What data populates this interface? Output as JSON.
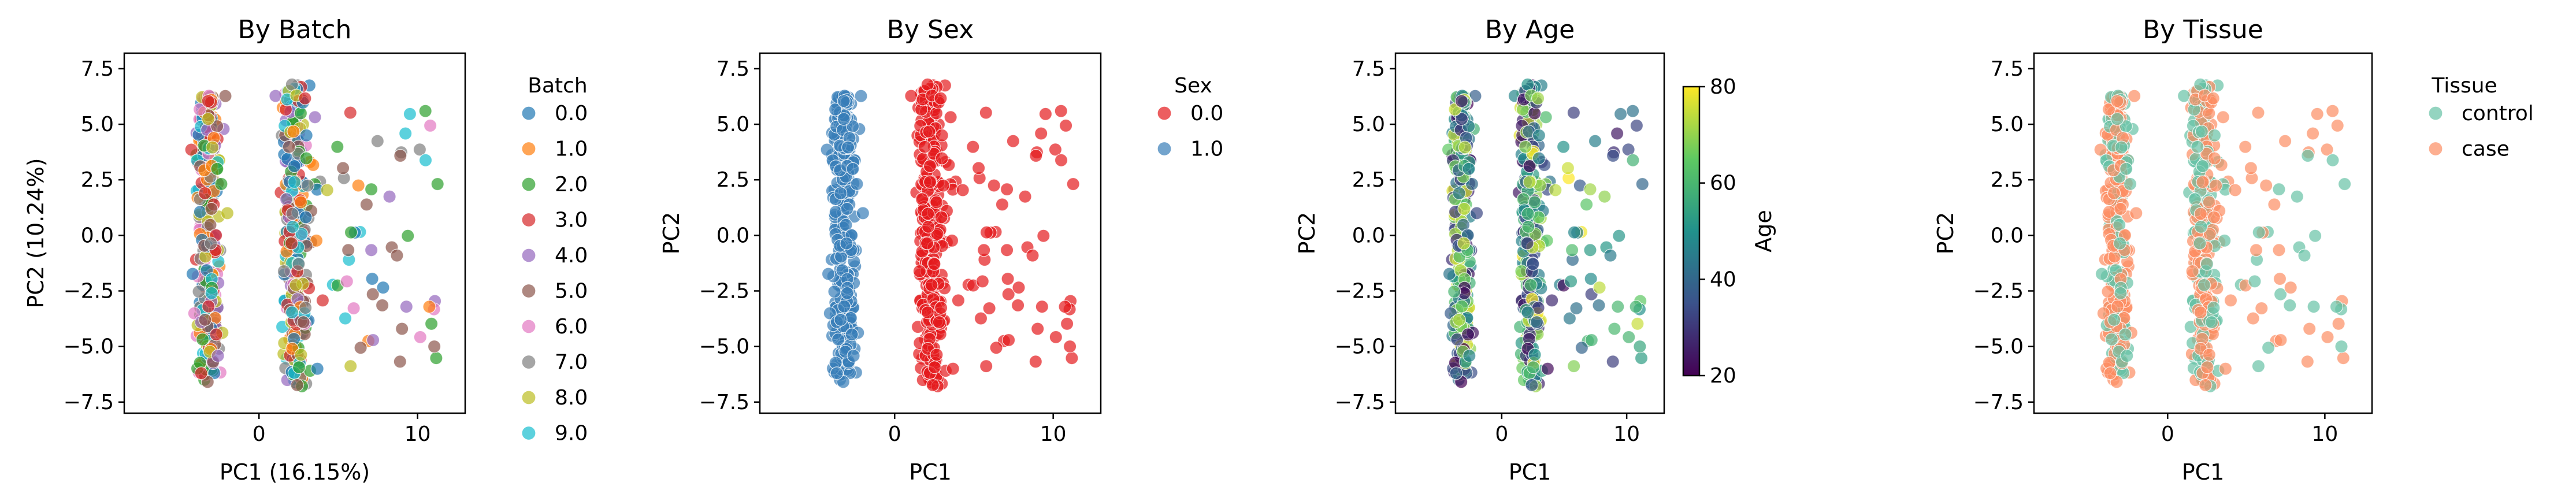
{
  "chart_data": [
    {
      "type": "scatter",
      "title": "By Batch",
      "xlabel": "PC1 (16.15%)",
      "ylabel": "PC2 (10.24%)",
      "xlim": [
        -8.5,
        13.0
      ],
      "ylim": [
        -8.0,
        8.2
      ],
      "xticks": [
        0,
        10
      ],
      "yticks": [
        -7.5,
        -5.0,
        -2.5,
        0.0,
        2.5,
        5.0,
        7.5
      ],
      "xtick_labels": [
        "0",
        "10"
      ],
      "ytick_labels": [
        "−7.5",
        "−5.0",
        "−2.5",
        "0.0",
        "2.5",
        "5.0",
        "7.5"
      ],
      "legend": {
        "title": "Batch",
        "placement": "outside-right",
        "entries": [
          "0.0",
          "1.0",
          "2.0",
          "3.0",
          "4.0",
          "5.0",
          "6.0",
          "7.0",
          "8.0",
          "9.0"
        ],
        "colors": [
          "#1f77b4",
          "#ff7f0e",
          "#2ca02c",
          "#d62728",
          "#9467bd",
          "#8c564b",
          "#e377c2",
          "#7f7f7f",
          "#bcbd22",
          "#17becf"
        ]
      },
      "grid": false,
      "marker_opacity": 0.7
    },
    {
      "type": "scatter",
      "title": "By Sex",
      "xlabel": "PC1",
      "ylabel": "PC2",
      "xlim": [
        -8.5,
        13.0
      ],
      "ylim": [
        -8.0,
        8.2
      ],
      "xticks": [
        0,
        10
      ],
      "yticks": [
        -7.5,
        -5.0,
        -2.5,
        0.0,
        2.5,
        5.0,
        7.5
      ],
      "xtick_labels": [
        "0",
        "10"
      ],
      "ytick_labels": [
        "−7.5",
        "−5.0",
        "−2.5",
        "0.0",
        "2.5",
        "5.0",
        "7.5"
      ],
      "legend": {
        "title": "Sex",
        "placement": "outside-right",
        "entries": [
          "0.0",
          "1.0"
        ],
        "colors": [
          "#e41a1c",
          "#377eb8"
        ]
      },
      "grid": false,
      "marker_opacity": 0.7
    },
    {
      "type": "scatter",
      "title": "By Age",
      "xlabel": "PC1",
      "ylabel": "PC2",
      "xlim": [
        -8.5,
        13.0
      ],
      "ylim": [
        -8.0,
        8.2
      ],
      "xticks": [
        0,
        10
      ],
      "yticks": [
        -7.5,
        -5.0,
        -2.5,
        0.0,
        2.5,
        5.0,
        7.5
      ],
      "xtick_labels": [
        "0",
        "10"
      ],
      "ytick_labels": [
        "−7.5",
        "−5.0",
        "−2.5",
        "0.0",
        "2.5",
        "5.0",
        "7.5"
      ],
      "colorbar": {
        "label": "Age",
        "range": [
          20,
          80
        ],
        "ticks": [
          20,
          40,
          60,
          80
        ],
        "tick_labels": [
          "20",
          "40",
          "60",
          "80"
        ],
        "colormap": [
          "#440154",
          "#3b528b",
          "#21918c",
          "#5ec962",
          "#fde725"
        ]
      },
      "grid": false,
      "marker_opacity": 0.7
    },
    {
      "type": "scatter",
      "title": "By Tissue",
      "xlabel": "PC1",
      "ylabel": "PC2",
      "xlim": [
        -8.5,
        13.0
      ],
      "ylim": [
        -8.0,
        8.2
      ],
      "xticks": [
        0,
        10
      ],
      "yticks": [
        -7.5,
        -5.0,
        -2.5,
        0.0,
        2.5,
        5.0,
        7.5
      ],
      "xtick_labels": [
        "0",
        "10"
      ],
      "ytick_labels": [
        "−7.5",
        "−5.0",
        "−2.5",
        "0.0",
        "2.5",
        "5.0",
        "7.5"
      ],
      "legend": {
        "title": "Tissue",
        "placement": "outside-right",
        "entries": [
          "control",
          "case"
        ],
        "colors": [
          "#66c2a5",
          "#fc8d62"
        ]
      },
      "grid": false,
      "marker_opacity": 0.7
    }
  ],
  "points": {
    "count": 620,
    "clusters": [
      {
        "x_mean": -3.2,
        "x_sd": 1.0,
        "y_range": [
          -6.6,
          6.4
        ],
        "sex": 1
      },
      {
        "x_mean": 2.3,
        "x_sd": 1.1,
        "y_range": [
          -6.8,
          6.8
        ],
        "sex": 0
      },
      {
        "x_range": [
          3.5,
          11.5
        ],
        "y_range": [
          -6.2,
          5.6
        ],
        "sex": 0
      }
    ]
  }
}
